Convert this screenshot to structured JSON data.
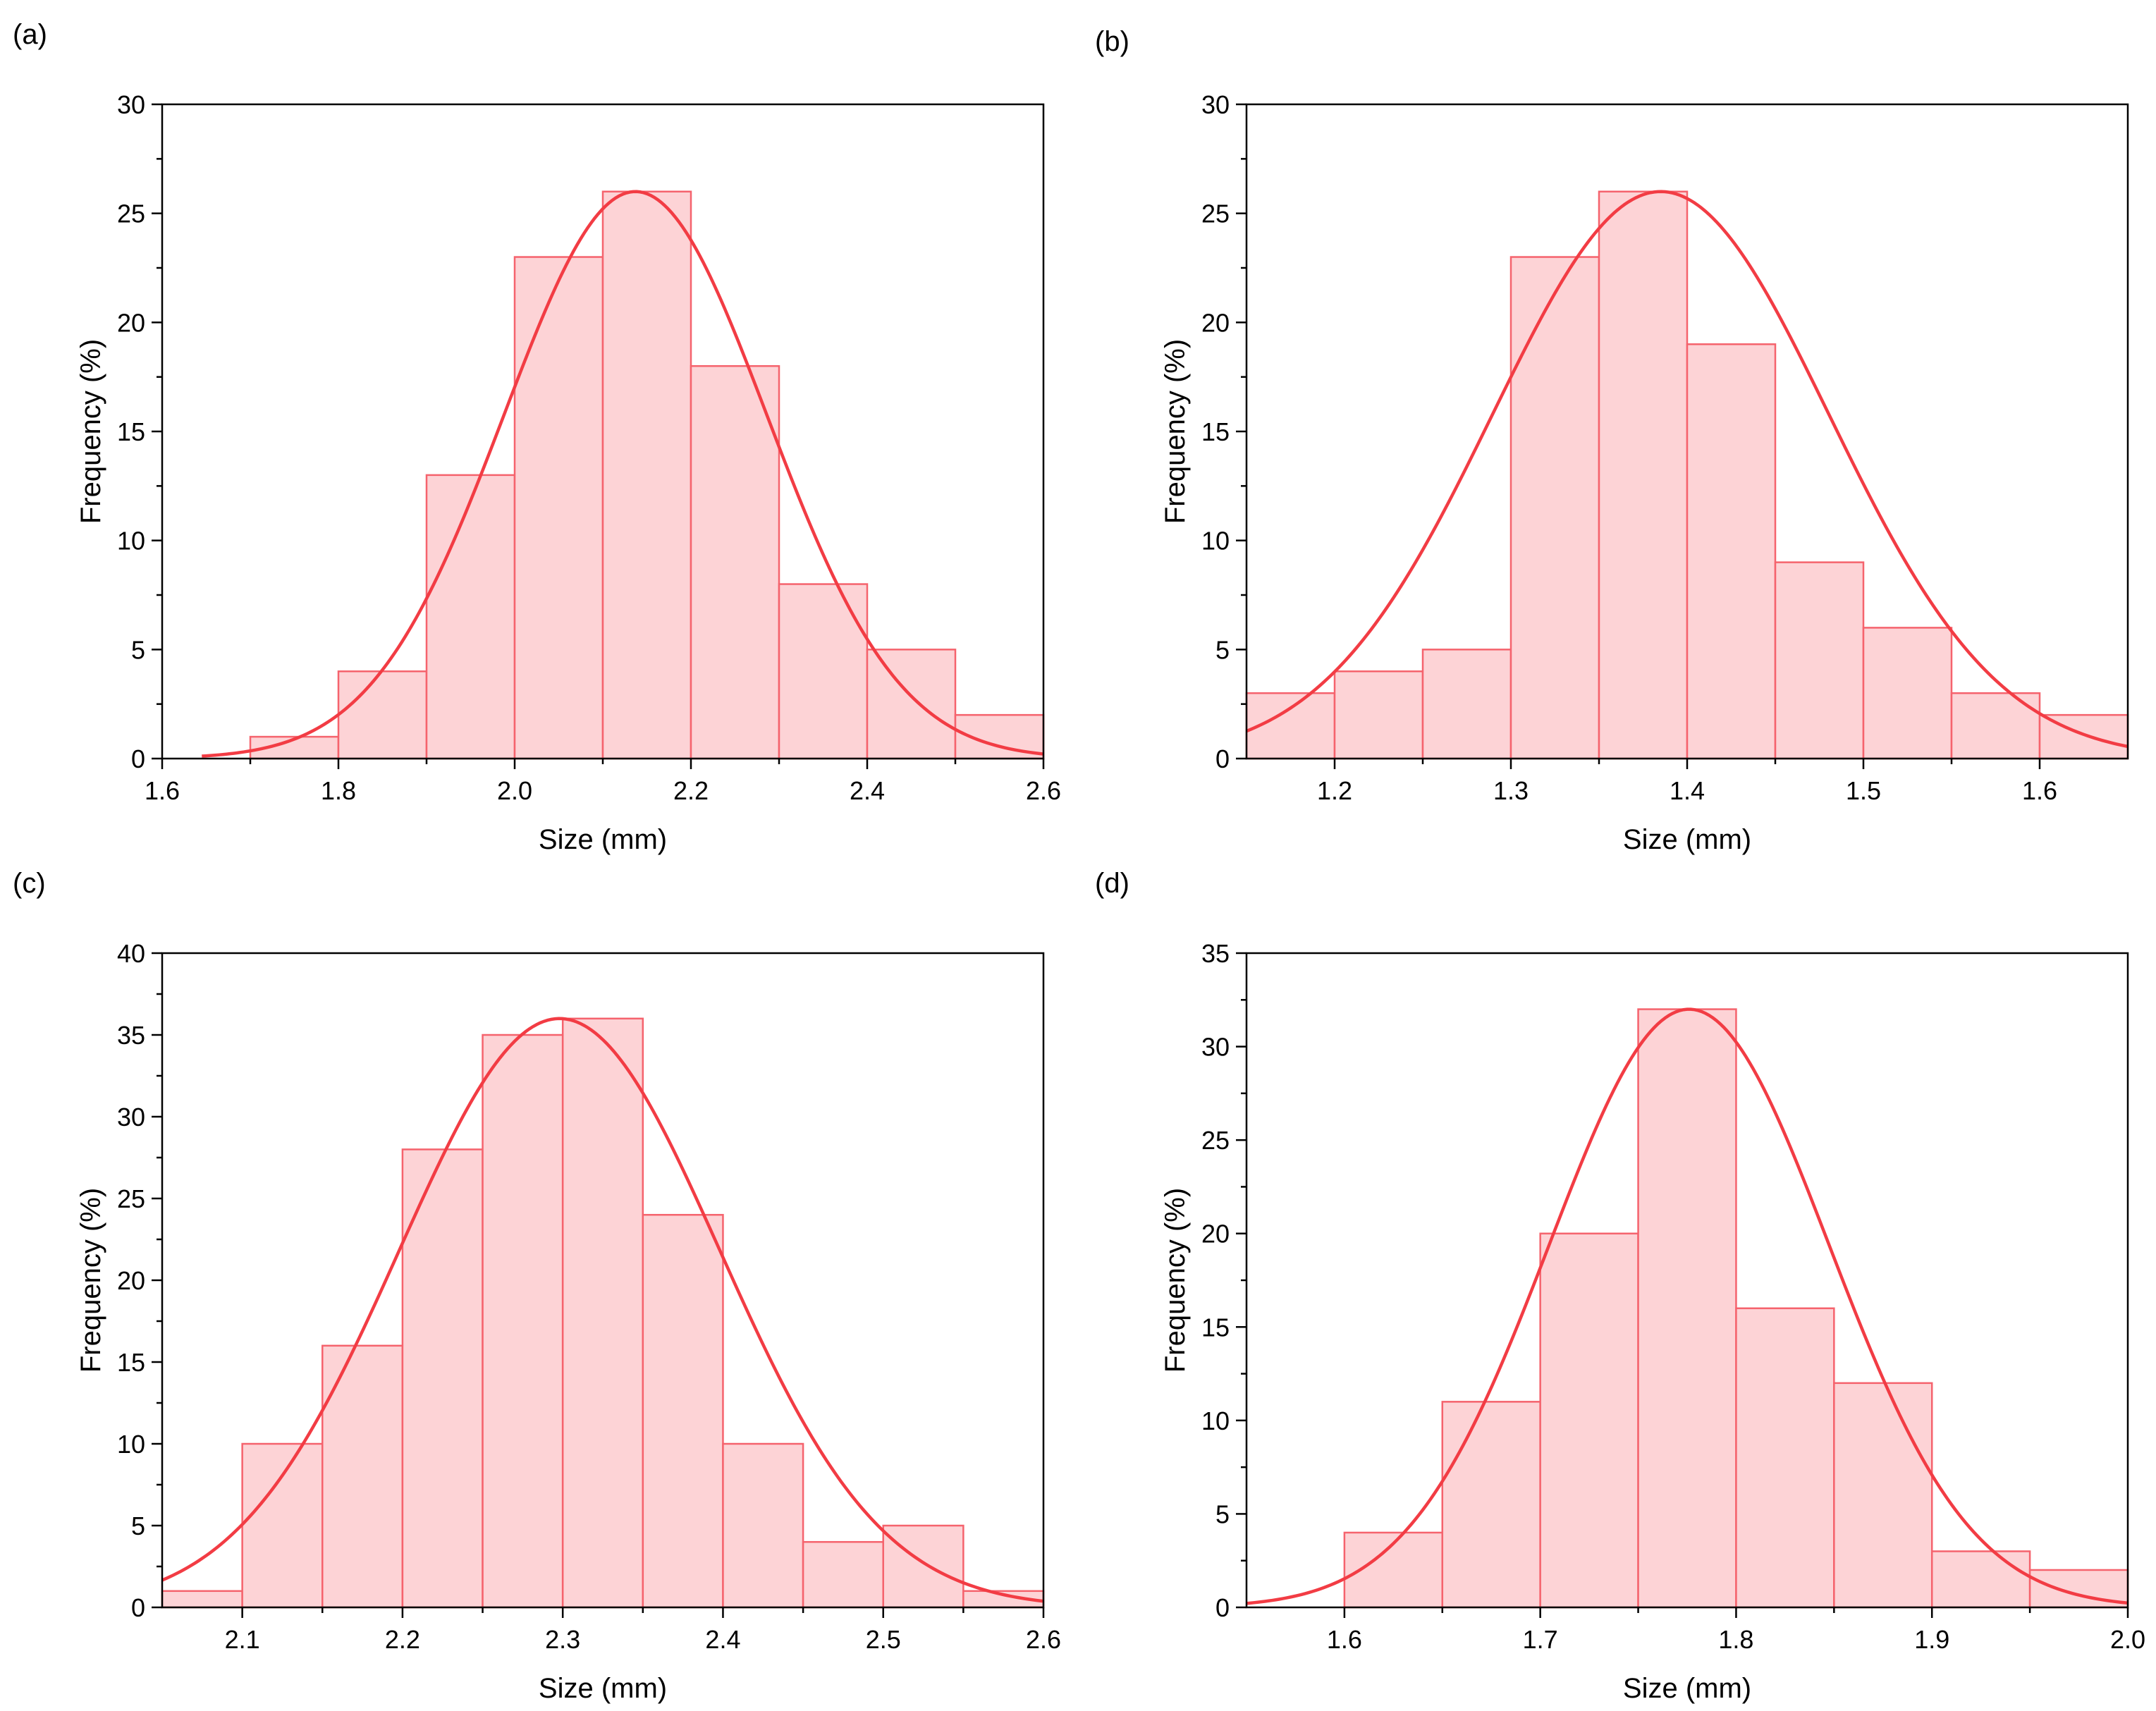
{
  "figure": {
    "colors": {
      "bar_fill": "#fdd3d6",
      "bar_edge": "#f5636d",
      "fit_line": "#f23c44",
      "axis": "#000000"
    }
  },
  "chart_data": [
    {
      "type": "bar",
      "panel_label": "(a)",
      "xlabel": "Size (mm)",
      "ylabel": "Frequency (%)",
      "xlim": [
        1.6,
        2.6
      ],
      "ylim": [
        0,
        30
      ],
      "xticks": [
        "1.6",
        "1.8",
        "2.0",
        "2.2",
        "2.4",
        "2.6"
      ],
      "yticks": [
        "0",
        "5",
        "10",
        "15",
        "20",
        "25",
        "30"
      ],
      "bin_edges": [
        1.7,
        1.8,
        1.9,
        2.0,
        2.1,
        2.2,
        2.3,
        2.4,
        2.5,
        2.6
      ],
      "values": [
        1,
        4,
        13,
        23,
        26,
        18,
        8,
        5,
        2
      ],
      "fit": {
        "type": "normal",
        "mean": 2.137,
        "sigma": 0.149,
        "peak": 26,
        "x_start": 1.645,
        "x_end": 2.6
      }
    },
    {
      "type": "bar",
      "panel_label": "(b)",
      "xlabel": "Size (mm)",
      "ylabel": "Frequency (%)",
      "xlim": [
        1.15,
        1.65
      ],
      "ylim": [
        0,
        30
      ],
      "xticks": [
        "1.2",
        "1.3",
        "1.4",
        "1.5",
        "1.6"
      ],
      "yticks": [
        "0",
        "5",
        "10",
        "15",
        "20",
        "25",
        "30"
      ],
      "bin_edges": [
        1.15,
        1.2,
        1.25,
        1.3,
        1.35,
        1.4,
        1.45,
        1.5,
        1.55,
        1.6,
        1.65
      ],
      "values": [
        3,
        4,
        5,
        23,
        26,
        19,
        9,
        6,
        3,
        2
      ],
      "fit": {
        "type": "normal",
        "mean": 1.385,
        "sigma": 0.0955,
        "peak": 26,
        "x_start": 1.15,
        "x_end": 1.65
      }
    },
    {
      "type": "bar",
      "panel_label": "(c)",
      "xlabel": "Size (mm)",
      "ylabel": "Frequency (%)",
      "xlim": [
        2.05,
        2.6
      ],
      "ylim": [
        0,
        40
      ],
      "xticks": [
        "2.1",
        "2.2",
        "2.3",
        "2.4",
        "2.5",
        "2.6"
      ],
      "yticks": [
        "0",
        "5",
        "10",
        "15",
        "20",
        "25",
        "30",
        "35",
        "40"
      ],
      "bin_edges": [
        2.05,
        2.1,
        2.15,
        2.2,
        2.25,
        2.3,
        2.35,
        2.4,
        2.45,
        2.5,
        2.55,
        2.6
      ],
      "values": [
        1,
        10,
        16,
        28,
        35,
        36,
        24,
        10,
        4,
        5,
        1
      ],
      "fit": {
        "type": "normal",
        "mean": 2.298,
        "sigma": 0.1,
        "peak": 36,
        "x_start": 2.05,
        "x_end": 2.6
      }
    },
    {
      "type": "bar",
      "panel_label": "(d)",
      "xlabel": "Size (mm)",
      "ylabel": "Frequency (%)",
      "xlim": [
        1.55,
        2.0
      ],
      "ylim": [
        0,
        35
      ],
      "xticks": [
        "1.6",
        "1.7",
        "1.8",
        "1.9",
        "2.0"
      ],
      "yticks": [
        "0",
        "5",
        "10",
        "15",
        "20",
        "25",
        "30",
        "35"
      ],
      "bin_edges": [
        1.6,
        1.65,
        1.7,
        1.75,
        1.8,
        1.85,
        1.9,
        1.95,
        2.0
      ],
      "values": [
        4,
        11,
        20,
        32,
        16,
        12,
        3,
        2
      ],
      "fit": {
        "type": "normal",
        "mean": 1.776,
        "sigma": 0.0714,
        "peak": 32,
        "x_start": 1.55,
        "x_end": 2.0
      }
    }
  ]
}
